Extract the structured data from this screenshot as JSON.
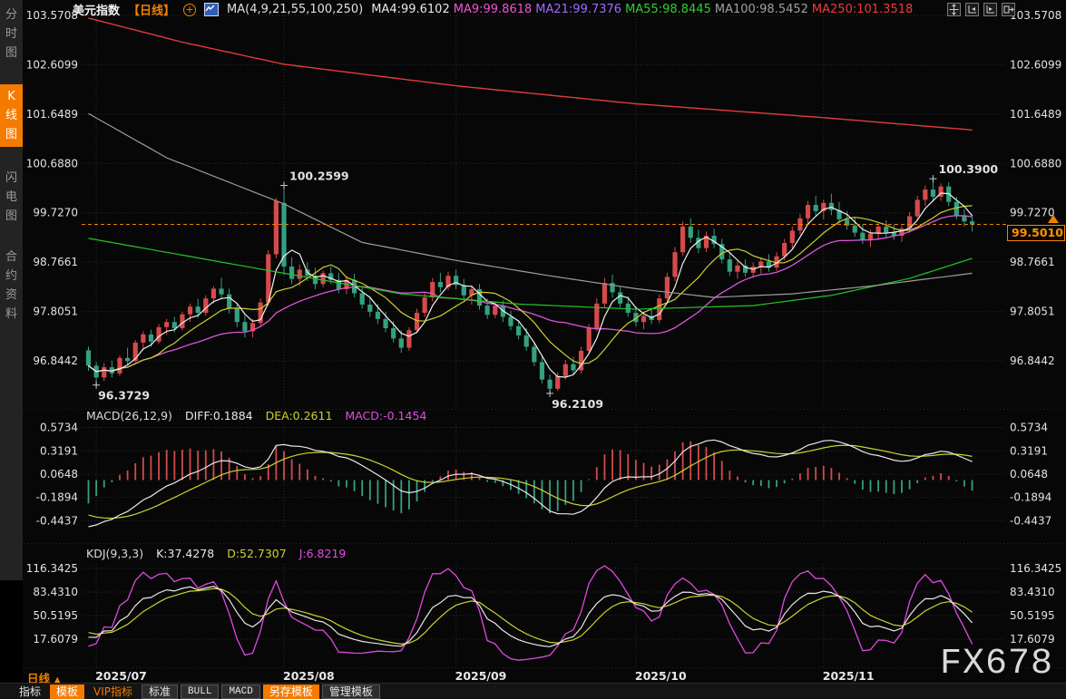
{
  "sidebar": {
    "items": [
      {
        "label": "分时图",
        "active": false
      },
      {
        "label": "K线图",
        "active": true
      },
      {
        "label": "闪电图",
        "active": false
      },
      {
        "label": "合约资料",
        "active": false
      }
    ]
  },
  "header": {
    "symbol": "美元指数",
    "period_tag": "【日线】",
    "plus_icon": "+",
    "ma_settings": "MA(4,9,21,55,100,250)",
    "ma_values": [
      {
        "text": "MA4:99.6102",
        "color": "#e8e8e8"
      },
      {
        "text": "MA9:99.8618",
        "color": "#f052d8"
      },
      {
        "text": "MA21:99.7376",
        "color": "#a06bff"
      },
      {
        "text": "MA55:98.8445",
        "color": "#33cc33"
      },
      {
        "text": "MA100:98.5452",
        "color": "#a0a0a0"
      },
      {
        "text": "MA250:101.3518",
        "color": "#ee3b3b"
      }
    ],
    "window_icons": [
      "pan-icon",
      "scale-left-axis-icon",
      "scale-right-axis-icon",
      "exit-scale-icon"
    ]
  },
  "macd_panel": {
    "title": "MACD(26,12,9)",
    "diff": "DIFF:0.1884",
    "dea": "DEA:0.2611",
    "macd": "MACD:-0.1454",
    "title_color": "#dcdcdc",
    "diff_color": "#e8e8e8",
    "dea_color": "#cdd12f",
    "macd_color": "#e04fe0"
  },
  "kdj_panel": {
    "title": "KDJ(9,3,3)",
    "k": "K:37.4278",
    "d": "D:52.7307",
    "j": "J:6.8219",
    "title_color": "#dcdcdc",
    "k_color": "#e8e8e8",
    "d_color": "#cdd12f",
    "j_color": "#e04fe0"
  },
  "xaxis": {
    "period": "日线",
    "period_arrow": "▲"
  },
  "price_tag_label": "99.5010",
  "watermark": "FX678",
  "bottom_tabs": [
    {
      "label": "指标",
      "style": "plain"
    },
    {
      "label": "模板",
      "style": "orange"
    },
    {
      "label": "VIP指标",
      "style": "orange-text"
    },
    {
      "label": "标准",
      "style": "tile"
    },
    {
      "label": "BULL",
      "style": "tile-mono"
    },
    {
      "label": "MACD",
      "style": "tile-mono"
    },
    {
      "label": "另存模板",
      "style": "orange"
    },
    {
      "label": "管理模板",
      "style": "tile"
    }
  ],
  "chart_data": {
    "type": "candlestick",
    "symbol": "美元指数",
    "period": "日线",
    "y_ticks": [
      103.5708,
      102.6099,
      101.6489,
      100.688,
      99.727,
      98.7661,
      97.8051,
      96.8442
    ],
    "y_tick_labels": [
      "103.5708",
      "102.6099",
      "101.6489",
      "100.6880",
      "99.7270",
      "98.7661",
      "97.8051",
      "96.8442"
    ],
    "x_labels": [
      {
        "label": "2025/07",
        "index": 1
      },
      {
        "label": "2025/08",
        "index": 25
      },
      {
        "label": "2025/09",
        "index": 47
      },
      {
        "label": "2025/10",
        "index": 70
      },
      {
        "label": "2025/11",
        "index": 94
      }
    ],
    "current_price": 99.501,
    "up_color": "#d64a4a",
    "down_color": "#35a081",
    "accent_orange": "#f08200",
    "annotations": [
      {
        "index": 25,
        "price": 100.2599,
        "text": "100.2599",
        "color": "#e64949",
        "pos": "above"
      },
      {
        "index": 108,
        "price": 100.39,
        "text": "100.3900",
        "color": "#e64949",
        "pos": "above"
      },
      {
        "index": 1,
        "price": 96.3729,
        "text": "96.3729",
        "color": "#3eb489",
        "pos": "below"
      },
      {
        "index": 59,
        "price": 96.2109,
        "text": "96.2109",
        "color": "#3eb489",
        "pos": "below"
      }
    ],
    "candles": [
      [
        97.05,
        97.12,
        96.65,
        96.75
      ],
      [
        96.75,
        96.82,
        96.3729,
        96.52
      ],
      [
        96.52,
        96.8,
        96.45,
        96.72
      ],
      [
        96.72,
        96.85,
        96.52,
        96.6
      ],
      [
        96.6,
        96.95,
        96.55,
        96.9
      ],
      [
        96.9,
        97.1,
        96.78,
        96.84
      ],
      [
        96.84,
        97.25,
        96.82,
        97.2
      ],
      [
        97.2,
        97.42,
        97.05,
        97.36
      ],
      [
        97.36,
        97.45,
        97.12,
        97.22
      ],
      [
        97.22,
        97.56,
        97.18,
        97.5
      ],
      [
        97.5,
        97.66,
        97.35,
        97.6
      ],
      [
        97.6,
        97.7,
        97.4,
        97.48
      ],
      [
        97.48,
        97.8,
        97.44,
        97.75
      ],
      [
        97.75,
        97.96,
        97.6,
        97.9
      ],
      [
        97.9,
        98.05,
        97.68,
        97.78
      ],
      [
        97.78,
        98.12,
        97.72,
        98.06
      ],
      [
        98.06,
        98.3,
        97.96,
        98.25
      ],
      [
        98.25,
        98.46,
        98.04,
        98.14
      ],
      [
        98.14,
        98.25,
        97.76,
        97.86
      ],
      [
        97.86,
        97.96,
        97.5,
        97.6
      ],
      [
        97.6,
        97.76,
        97.3,
        97.42
      ],
      [
        97.42,
        97.66,
        97.3,
        97.58
      ],
      [
        97.58,
        98.06,
        97.52,
        97.98
      ],
      [
        97.98,
        99.0,
        97.92,
        98.92
      ],
      [
        98.92,
        100.02,
        98.84,
        99.96
      ],
      [
        99.92,
        100.2599,
        98.52,
        98.68
      ],
      [
        98.68,
        98.86,
        98.34,
        98.44
      ],
      [
        98.44,
        98.72,
        98.3,
        98.62
      ],
      [
        98.62,
        98.76,
        98.4,
        98.5
      ],
      [
        98.5,
        98.66,
        98.24,
        98.34
      ],
      [
        98.34,
        98.6,
        98.28,
        98.55
      ],
      [
        98.55,
        98.68,
        98.34,
        98.42
      ],
      [
        98.42,
        98.56,
        98.16,
        98.24
      ],
      [
        98.24,
        98.5,
        98.14,
        98.42
      ],
      [
        98.42,
        98.54,
        98.08,
        98.16
      ],
      [
        98.16,
        98.3,
        97.86,
        97.94
      ],
      [
        97.94,
        98.1,
        97.7,
        97.8
      ],
      [
        97.8,
        97.95,
        97.56,
        97.66
      ],
      [
        97.66,
        97.8,
        97.4,
        97.48
      ],
      [
        97.48,
        97.62,
        97.2,
        97.28
      ],
      [
        97.28,
        97.44,
        97.0,
        97.1
      ],
      [
        97.1,
        97.5,
        97.04,
        97.44
      ],
      [
        97.44,
        97.86,
        97.38,
        97.78
      ],
      [
        97.78,
        98.16,
        97.7,
        98.08
      ],
      [
        98.08,
        98.46,
        98.0,
        98.38
      ],
      [
        98.38,
        98.56,
        98.18,
        98.28
      ],
      [
        98.28,
        98.58,
        98.22,
        98.5
      ],
      [
        98.5,
        98.62,
        98.24,
        98.32
      ],
      [
        98.32,
        98.44,
        98.04,
        98.12
      ],
      [
        98.12,
        98.32,
        97.94,
        98.24
      ],
      [
        98.24,
        98.34,
        97.84,
        97.92
      ],
      [
        97.92,
        98.06,
        97.66,
        97.74
      ],
      [
        97.74,
        98.0,
        97.68,
        97.92
      ],
      [
        97.92,
        98.02,
        97.6,
        97.7
      ],
      [
        97.7,
        97.82,
        97.44,
        97.52
      ],
      [
        97.52,
        97.64,
        97.26,
        97.34
      ],
      [
        97.34,
        97.48,
        97.04,
        97.12
      ],
      [
        97.12,
        97.22,
        96.74,
        96.82
      ],
      [
        96.82,
        96.92,
        96.4,
        96.48
      ],
      [
        96.48,
        96.58,
        96.2109,
        96.3
      ],
      [
        96.3,
        96.62,
        96.26,
        96.55
      ],
      [
        96.55,
        96.86,
        96.48,
        96.78
      ],
      [
        96.78,
        96.92,
        96.58,
        96.66
      ],
      [
        96.66,
        97.12,
        96.6,
        97.04
      ],
      [
        97.04,
        97.56,
        96.98,
        97.48
      ],
      [
        97.48,
        98.06,
        97.42,
        97.96
      ],
      [
        97.96,
        98.46,
        97.88,
        98.36
      ],
      [
        98.36,
        98.52,
        98.08,
        98.18
      ],
      [
        98.18,
        98.3,
        97.88,
        97.96
      ],
      [
        97.96,
        98.1,
        97.7,
        97.78
      ],
      [
        97.78,
        97.9,
        97.52,
        97.6
      ],
      [
        97.6,
        97.8,
        97.46,
        97.72
      ],
      [
        97.72,
        97.88,
        97.56,
        97.64
      ],
      [
        97.64,
        98.14,
        97.58,
        98.06
      ],
      [
        98.06,
        98.56,
        98.0,
        98.48
      ],
      [
        98.48,
        99.06,
        98.4,
        98.96
      ],
      [
        98.96,
        99.56,
        98.88,
        99.46
      ],
      [
        99.46,
        99.62,
        99.14,
        99.24
      ],
      [
        99.24,
        99.4,
        98.94,
        99.04
      ],
      [
        99.04,
        99.36,
        98.96,
        99.28
      ],
      [
        99.28,
        99.42,
        99.04,
        99.12
      ],
      [
        99.12,
        99.22,
        98.74,
        98.82
      ],
      [
        98.82,
        98.94,
        98.5,
        98.58
      ],
      [
        98.58,
        98.78,
        98.44,
        98.7
      ],
      [
        98.7,
        98.82,
        98.48,
        98.56
      ],
      [
        98.56,
        98.76,
        98.46,
        98.68
      ],
      [
        98.68,
        98.86,
        98.54,
        98.78
      ],
      [
        98.78,
        98.92,
        98.58,
        98.66
      ],
      [
        98.66,
        98.96,
        98.6,
        98.88
      ],
      [
        98.88,
        99.22,
        98.8,
        99.14
      ],
      [
        99.14,
        99.46,
        99.04,
        99.38
      ],
      [
        99.38,
        99.7,
        99.3,
        99.62
      ],
      [
        99.62,
        99.96,
        99.52,
        99.88
      ],
      [
        99.88,
        100.06,
        99.68,
        99.76
      ],
      [
        99.76,
        99.98,
        99.6,
        99.92
      ],
      [
        99.92,
        100.1,
        99.68,
        99.78
      ],
      [
        99.78,
        99.94,
        99.52,
        99.6
      ],
      [
        99.6,
        99.76,
        99.4,
        99.48
      ],
      [
        99.48,
        99.64,
        99.26,
        99.34
      ],
      [
        99.34,
        99.5,
        99.12,
        99.2
      ],
      [
        99.2,
        99.4,
        99.06,
        99.32
      ],
      [
        99.32,
        99.52,
        99.2,
        99.46
      ],
      [
        99.46,
        99.58,
        99.24,
        99.34
      ],
      [
        99.34,
        99.5,
        99.2,
        99.28
      ],
      [
        99.28,
        99.48,
        99.16,
        99.42
      ],
      [
        99.42,
        99.74,
        99.34,
        99.66
      ],
      [
        99.66,
        100.06,
        99.58,
        99.98
      ],
      [
        99.98,
        100.26,
        99.86,
        100.18
      ],
      [
        100.18,
        100.39,
        99.94,
        100.04
      ],
      [
        100.04,
        100.3,
        99.96,
        100.24
      ],
      [
        100.24,
        100.32,
        99.86,
        99.94
      ],
      [
        99.94,
        100.04,
        99.6,
        99.68
      ],
      [
        99.68,
        99.8,
        99.46,
        99.56
      ],
      [
        99.56,
        99.7,
        99.36,
        99.501
      ]
    ],
    "overlays": {
      "ma4": {
        "color": "#f0f0f0",
        "period": 4
      },
      "ma9": {
        "color": "#cdd12f",
        "period": 9
      },
      "ma21": {
        "color": "#d957d9",
        "period": 21
      },
      "ma55_anchors": {
        "color": "#24c524",
        "points": [
          [
            0,
            99.23
          ],
          [
            25,
            98.55
          ],
          [
            40,
            98.15
          ],
          [
            55,
            97.95
          ],
          [
            70,
            97.85
          ],
          [
            85,
            97.92
          ],
          [
            95,
            98.12
          ],
          [
            105,
            98.45
          ],
          [
            113,
            98.84
          ]
        ]
      },
      "ma100_anchors": {
        "color": "#9c9c9c",
        "points": [
          [
            0,
            101.66
          ],
          [
            10,
            100.8
          ],
          [
            25,
            99.9
          ],
          [
            35,
            99.15
          ],
          [
            47,
            98.8
          ],
          [
            59,
            98.5
          ],
          [
            70,
            98.25
          ],
          [
            80,
            98.08
          ],
          [
            90,
            98.15
          ],
          [
            100,
            98.3
          ],
          [
            113,
            98.55
          ]
        ]
      },
      "ma250_anchors": {
        "color": "#e23b3b",
        "points": [
          [
            0,
            103.52
          ],
          [
            12,
            103.05
          ],
          [
            25,
            102.62
          ],
          [
            47,
            102.2
          ],
          [
            70,
            101.85
          ],
          [
            94,
            101.58
          ],
          [
            113,
            101.34
          ]
        ]
      }
    },
    "macd": {
      "params": [
        26,
        12,
        9
      ],
      "y_ticks": [
        0.5734,
        0.3191,
        0.0648,
        -0.1894,
        -0.4437
      ],
      "y_tick_labels": [
        "0.5734",
        "0.3191",
        "0.0648",
        "-0.1894",
        "-0.4437"
      ],
      "diff_value": 0.1884,
      "dea_value": 0.2611,
      "macd_value": -0.1454
    },
    "kdj": {
      "params": [
        9,
        3,
        3
      ],
      "y_ticks": [
        116.3425,
        83.431,
        50.5195,
        17.6079
      ],
      "y_tick_labels": [
        "116.3425",
        "83.4310",
        "50.5195",
        "17.6079"
      ],
      "k_value": 37.4278,
      "d_value": 52.7307,
      "j_value": 6.8219
    }
  }
}
